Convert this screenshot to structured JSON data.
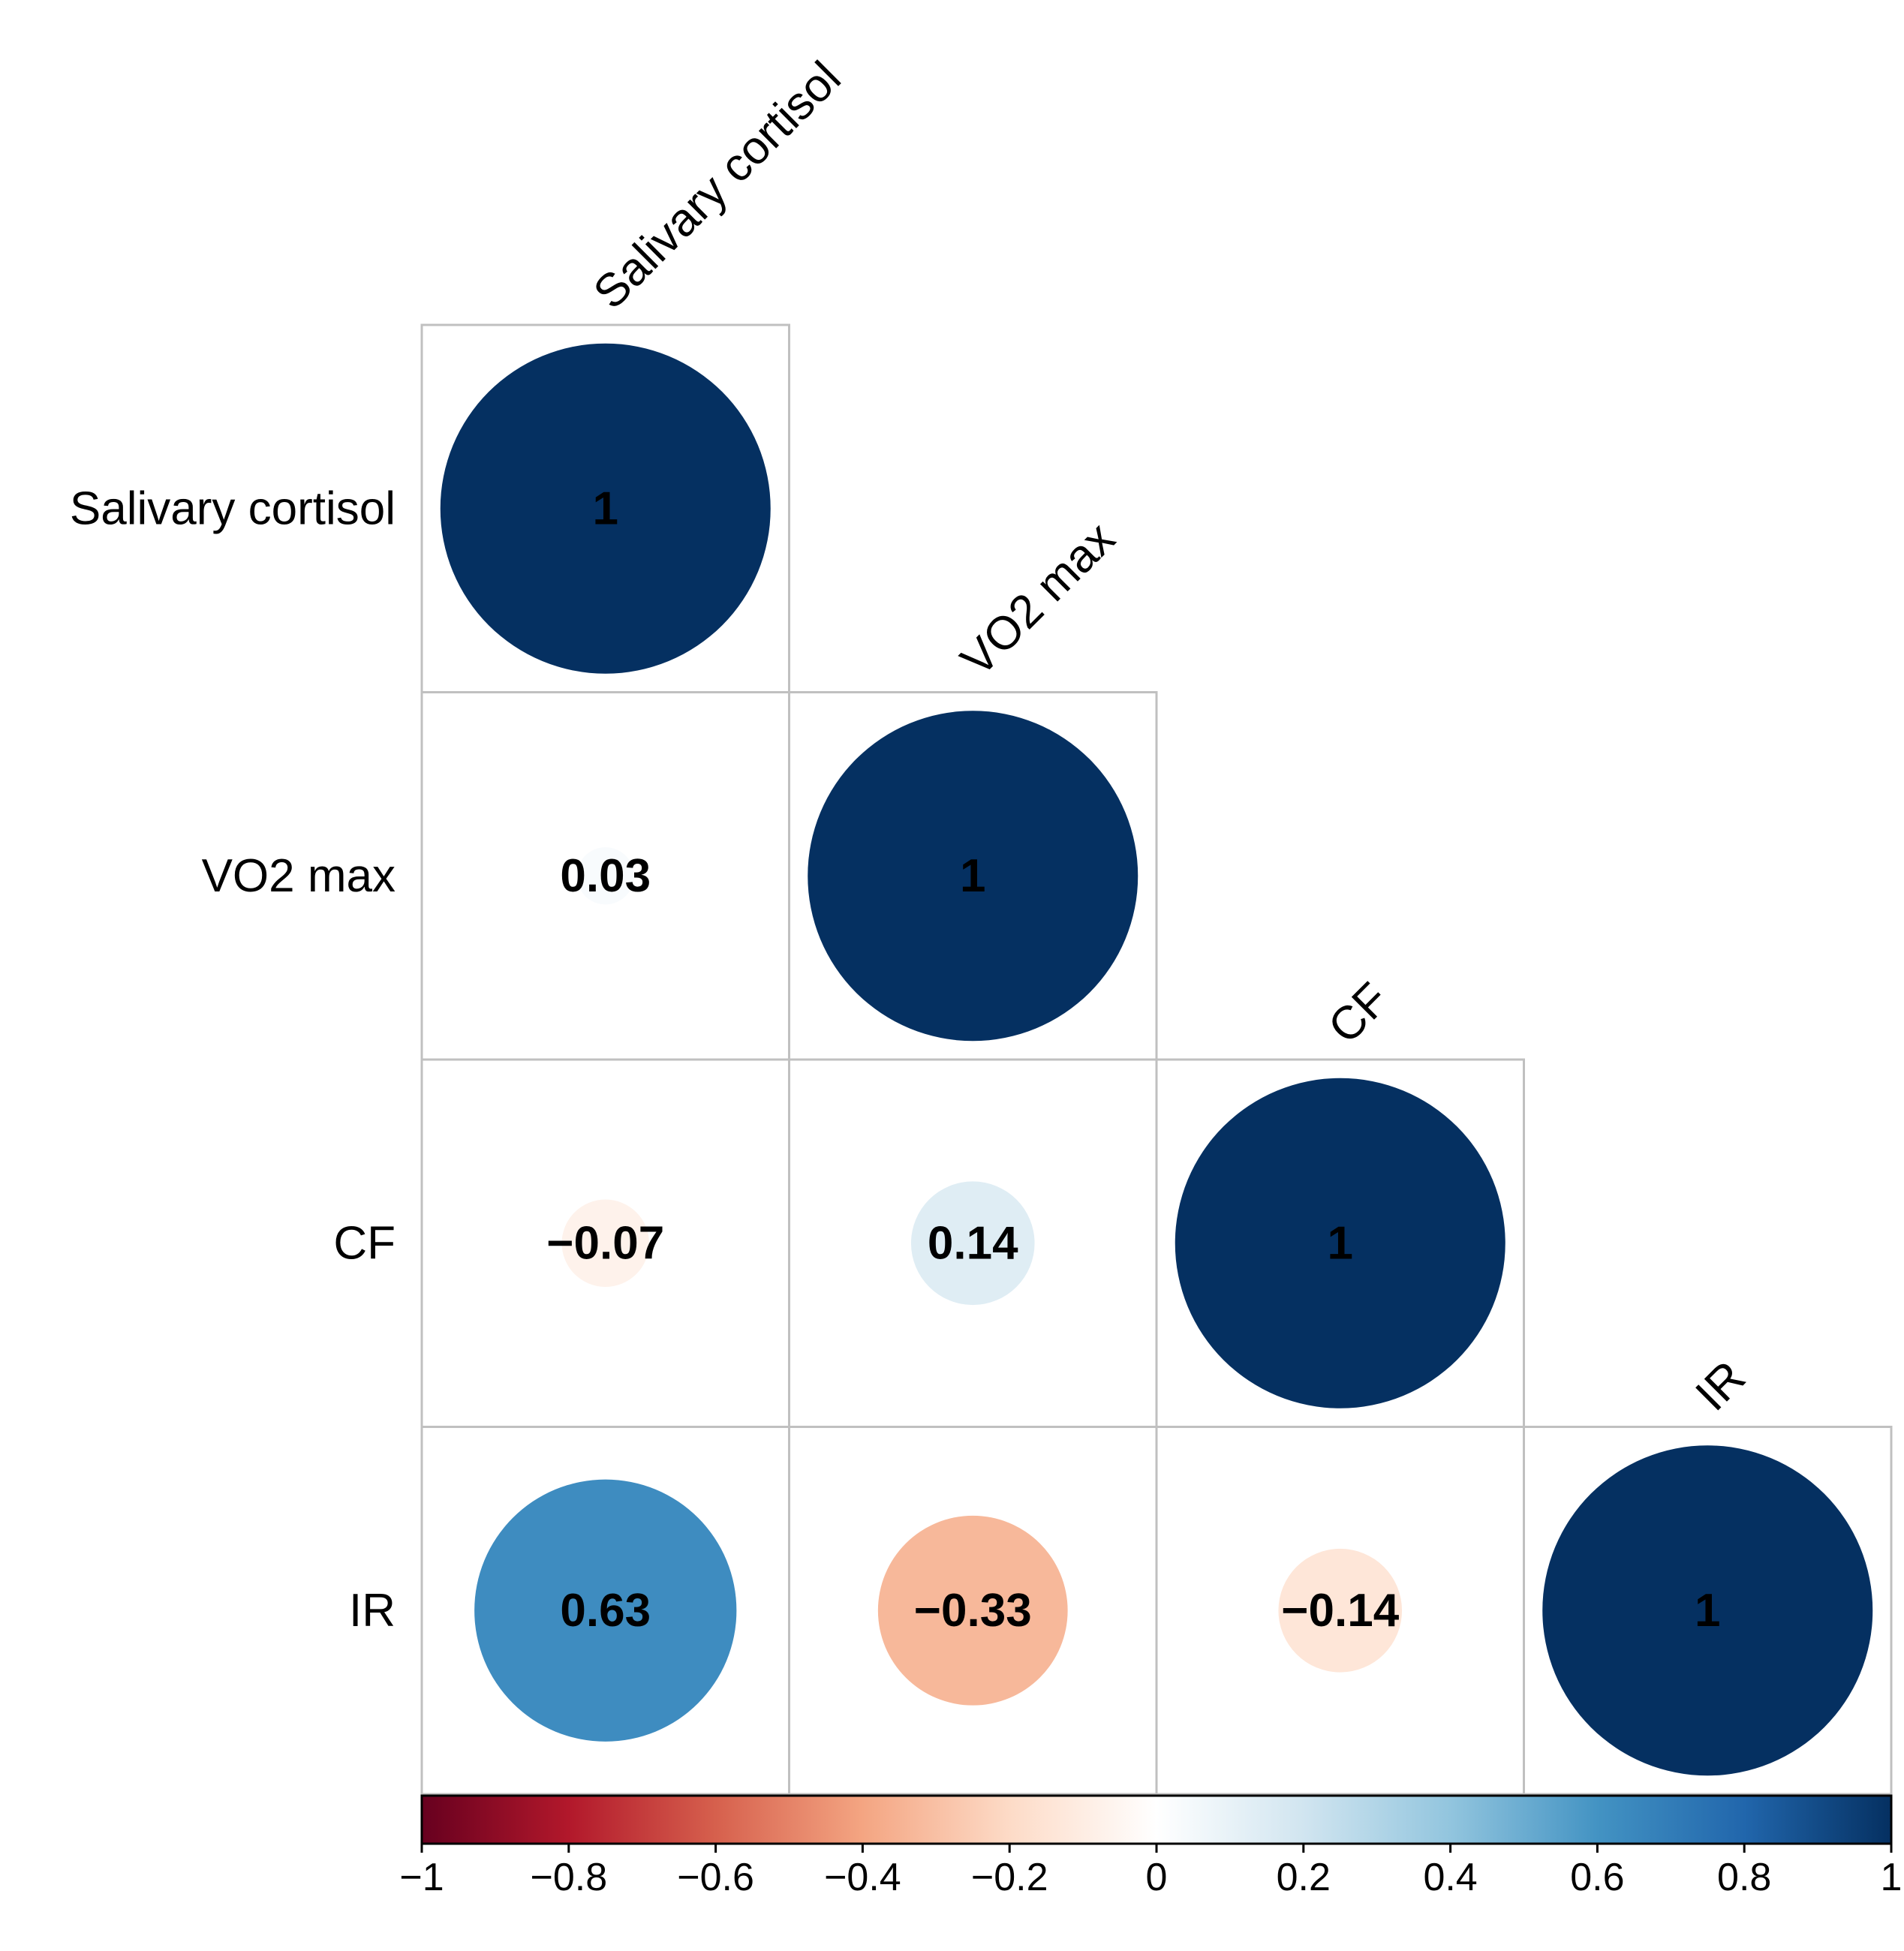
{
  "chart_data": {
    "type": "heatmap",
    "style": "correlation-matrix-lower-triangle-circles",
    "variables": [
      "Salivary cortisol",
      "VO2 max",
      "CF",
      "IR"
    ],
    "matrix": [
      [
        1,
        null,
        null,
        null
      ],
      [
        0.03,
        1,
        null,
        null
      ],
      [
        -0.07,
        0.14,
        1,
        null
      ],
      [
        0.63,
        -0.33,
        -0.14,
        1
      ]
    ],
    "cell_labels": [
      [
        "1",
        null,
        null,
        null
      ],
      [
        "0.03",
        "1",
        null,
        null
      ],
      [
        "−0.07",
        "0.14",
        "1",
        null
      ],
      [
        "0.63",
        "−0.33",
        "−0.14",
        "1"
      ]
    ],
    "value_range": [
      -1,
      1
    ],
    "colorbar": {
      "position": "bottom",
      "ticks": [
        -1,
        -0.8,
        -0.6,
        -0.4,
        -0.2,
        0,
        0.2,
        0.4,
        0.6,
        0.8,
        1
      ],
      "tick_labels": [
        "−1",
        "−0.8",
        "−0.6",
        "−0.4",
        "−0.2",
        "0",
        "0.2",
        "0.4",
        "0.6",
        "0.8",
        "1"
      ],
      "colors": [
        "#67001F",
        "#B2182B",
        "#D6604D",
        "#F4A582",
        "#FDDBC7",
        "#FFFFFF",
        "#D1E5F0",
        "#92C5DE",
        "#4393C3",
        "#2166AC",
        "#053061"
      ]
    }
  }
}
